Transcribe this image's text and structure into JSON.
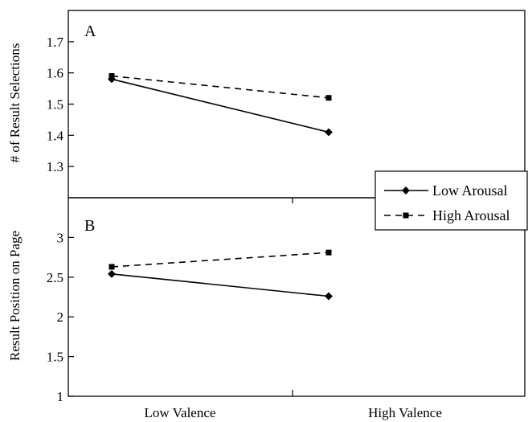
{
  "chart_data": [
    {
      "type": "line",
      "panel_label": "A",
      "ylabel": "# of Result Selections",
      "ylim": [
        1.2,
        1.8
      ],
      "yticks": [
        "1.3",
        "1.4",
        "1.5",
        "1.6",
        "1.7"
      ],
      "categories": [
        "Low Valence",
        "High Valence"
      ],
      "series": [
        {
          "name": "Low Arousal",
          "values": [
            1.58,
            1.41
          ],
          "marker": "diamond",
          "dash": "solid"
        },
        {
          "name": "High Arousal",
          "values": [
            1.59,
            1.52
          ],
          "marker": "square",
          "dash": "dashed"
        }
      ]
    },
    {
      "type": "line",
      "panel_label": "B",
      "ylabel": "Result Position on Page",
      "ylim": [
        1,
        3.5
      ],
      "yticks": [
        "1",
        "1.5",
        "2",
        "2.5",
        "3"
      ],
      "categories": [
        "Low Valence",
        "High Valence"
      ],
      "series": [
        {
          "name": "Low Arousal",
          "values": [
            2.54,
            2.26
          ],
          "marker": "diamond",
          "dash": "solid"
        },
        {
          "name": "High Arousal",
          "values": [
            2.63,
            2.81
          ],
          "marker": "square",
          "dash": "dashed"
        }
      ]
    }
  ],
  "legend": {
    "placement": "right",
    "items": [
      "Low Arousal",
      "High Arousal"
    ]
  },
  "xlabels": [
    "Low Valence",
    "High Valence"
  ]
}
